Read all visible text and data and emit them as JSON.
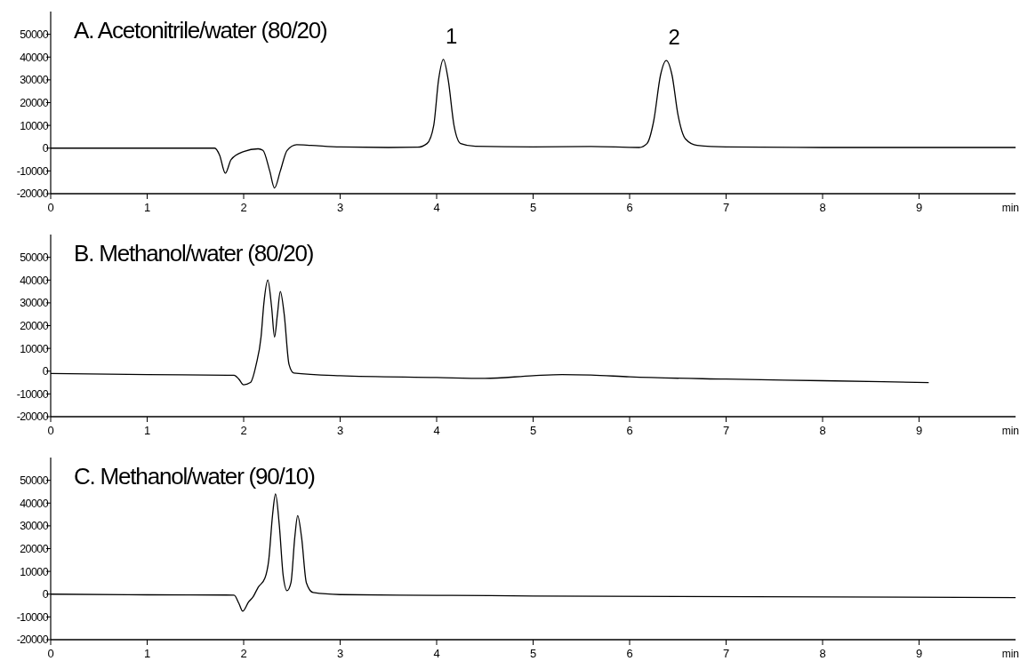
{
  "chart_data": [
    {
      "type": "line",
      "title": "A. Acetonitrile/water (80/20)",
      "xlabel": "min",
      "xlim": [
        0,
        10
      ],
      "xticks": [
        0,
        1,
        2,
        3,
        4,
        5,
        6,
        7,
        8,
        9
      ],
      "ylim": [
        -20000,
        60000
      ],
      "yticks": [
        -20000,
        -10000,
        0,
        10000,
        20000,
        30000,
        40000,
        50000
      ],
      "annotations": [
        {
          "text": "1",
          "x": 4.07,
          "y": 39000
        },
        {
          "text": "2",
          "x": 6.38,
          "y": 38500
        }
      ],
      "series": [
        {
          "color": "#000000",
          "x": [
            0,
            1.7,
            1.75,
            1.81,
            1.87,
            2.0,
            2.15,
            2.2,
            2.27,
            2.32,
            2.38,
            2.45,
            2.55,
            2.7,
            3.0,
            3.5,
            3.8,
            3.9,
            3.97,
            4.02,
            4.07,
            4.12,
            4.18,
            4.25,
            4.4,
            5.0,
            5.6,
            6.1,
            6.18,
            6.25,
            6.32,
            6.38,
            6.44,
            6.5,
            6.58,
            6.7,
            7.0,
            8.0,
            10.0
          ],
          "values": [
            0,
            0,
            -3000,
            -11000,
            -5000,
            -1500,
            -300,
            -1000,
            -10000,
            -17500,
            -10000,
            -1000,
            1500,
            1200,
            500,
            300,
            400,
            2000,
            10000,
            30000,
            39000,
            30000,
            10000,
            2000,
            800,
            500,
            700,
            300,
            2000,
            12000,
            32000,
            38500,
            32000,
            15000,
            4000,
            1200,
            500,
            300,
            300
          ]
        }
      ]
    },
    {
      "type": "line",
      "title": "B. Methanol/water (80/20)",
      "xlabel": "min",
      "xlim": [
        0,
        10
      ],
      "xticks": [
        0,
        1,
        2,
        3,
        4,
        5,
        6,
        7,
        8,
        9
      ],
      "ylim": [
        -20000,
        60000
      ],
      "yticks": [
        -20000,
        -10000,
        0,
        10000,
        20000,
        30000,
        40000,
        50000
      ],
      "series": [
        {
          "color": "#000000",
          "x": [
            0,
            1,
            1.9,
            1.95,
            2.0,
            2.07,
            2.13,
            2.18,
            2.21,
            2.25,
            2.29,
            2.32,
            2.35,
            2.38,
            2.42,
            2.47,
            2.52,
            3,
            4,
            4.5,
            5.0,
            5.3,
            5.6,
            6,
            7,
            8,
            9.1
          ],
          "values": [
            -1000,
            -1500,
            -1800,
            -3500,
            -6000,
            -5000,
            3000,
            15000,
            30000,
            40000,
            28000,
            15000,
            25000,
            35000,
            25000,
            3000,
            -800,
            -2000,
            -2800,
            -3200,
            -2000,
            -1500,
            -1700,
            -2500,
            -3500,
            -4200,
            -5000
          ]
        }
      ]
    },
    {
      "type": "line",
      "title": "C. Methanol/water (90/10)",
      "xlabel": "min",
      "xlim": [
        0,
        10
      ],
      "xticks": [
        0,
        1,
        2,
        3,
        4,
        5,
        6,
        7,
        8,
        9
      ],
      "ylim": [
        -20000,
        60000
      ],
      "yticks": [
        -20000,
        -10000,
        0,
        10000,
        20000,
        30000,
        40000,
        50000
      ],
      "series": [
        {
          "color": "#000000",
          "x": [
            0,
            1,
            1.9,
            1.95,
            1.99,
            2.05,
            2.1,
            2.15,
            2.22,
            2.26,
            2.3,
            2.33,
            2.37,
            2.41,
            2.45,
            2.49,
            2.53,
            2.56,
            2.6,
            2.65,
            2.72,
            3,
            4,
            5,
            10
          ],
          "values": [
            0,
            -300,
            -400,
            -4000,
            -7500,
            -3500,
            -1000,
            3000,
            7000,
            15000,
            35000,
            44000,
            30000,
            8000,
            1500,
            5000,
            25000,
            34500,
            25000,
            5000,
            700,
            -200,
            -500,
            -800,
            -1500
          ]
        }
      ]
    }
  ]
}
